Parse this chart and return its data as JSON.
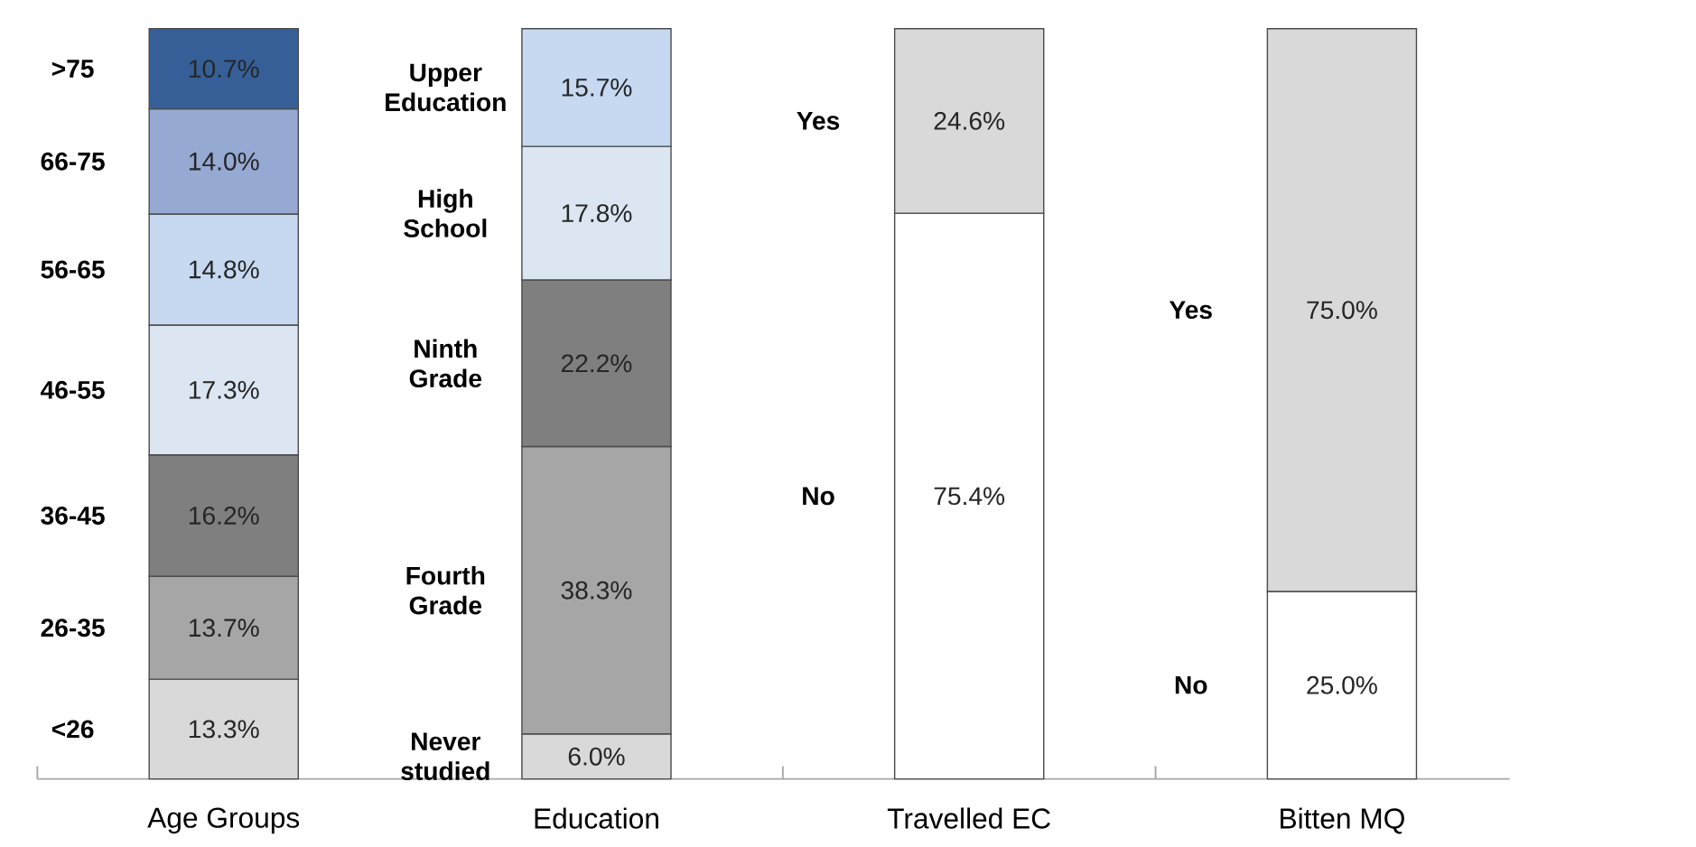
{
  "chart_data": {
    "type": "bar",
    "stacked": true,
    "categories": [
      "Age Groups",
      "Education",
      "Travelled EC",
      "Bitten MQ"
    ],
    "series": [
      {
        "name": "<26",
        "color": "#d9d9d9",
        "values": [
          13.3,
          null,
          null,
          null
        ],
        "value_labels": [
          "13.3%",
          null,
          null,
          null
        ]
      },
      {
        "name": "26-35",
        "color": "#a6a6a6",
        "values": [
          13.7,
          null,
          null,
          null
        ],
        "value_labels": [
          "13.7%",
          null,
          null,
          null
        ]
      },
      {
        "name": "36-45",
        "color": "#7f7f7f",
        "values": [
          16.2,
          null,
          null,
          null
        ],
        "value_labels": [
          "16.2%",
          null,
          null,
          null
        ]
      },
      {
        "name": "46-55",
        "color": "#dce6f2",
        "values": [
          17.3,
          null,
          null,
          null
        ],
        "value_labels": [
          "17.3%",
          null,
          null,
          null
        ]
      },
      {
        "name": "56-65",
        "color": "#c6d9f1",
        "values": [
          14.8,
          null,
          null,
          null
        ],
        "value_labels": [
          "14.8%",
          null,
          null,
          null
        ]
      },
      {
        "name": "66-75",
        "color": "#95a9d3",
        "values": [
          14.0,
          null,
          null,
          null
        ],
        "value_labels": [
          "14.0%",
          null,
          null,
          null
        ]
      },
      {
        "name": ">75",
        "color": "#365f98",
        "values": [
          10.7,
          null,
          null,
          null
        ],
        "value_labels": [
          "10.7%",
          null,
          null,
          null
        ]
      },
      {
        "name": "Never studied",
        "color": "#d9d9d9",
        "values": [
          null,
          6.0,
          null,
          null
        ],
        "value_labels": [
          null,
          "6.0%",
          null,
          null
        ]
      },
      {
        "name": "Fourth Grade",
        "color": "#a6a6a6",
        "values": [
          null,
          38.3,
          null,
          null
        ],
        "value_labels": [
          null,
          "38.3%",
          null,
          null
        ]
      },
      {
        "name": "Ninth Grade",
        "color": "#7f7f7f",
        "values": [
          null,
          22.2,
          null,
          null
        ],
        "value_labels": [
          null,
          "22.2%",
          null,
          null
        ]
      },
      {
        "name": "High School",
        "color": "#dce6f2",
        "values": [
          null,
          17.8,
          null,
          null
        ],
        "value_labels": [
          null,
          "17.8%",
          null,
          null
        ]
      },
      {
        "name": "Upper Education",
        "color": "#c6d9f1",
        "values": [
          null,
          15.7,
          null,
          null
        ],
        "value_labels": [
          null,
          "15.7%",
          null,
          null
        ]
      },
      {
        "name": "No",
        "color": "#ffffff",
        "values": [
          null,
          null,
          75.4,
          null
        ],
        "value_labels": [
          null,
          null,
          "75.4%",
          null
        ]
      },
      {
        "name": "Yes",
        "color": "#d9d9d9",
        "values": [
          null,
          null,
          24.6,
          null
        ],
        "value_labels": [
          null,
          null,
          "24.6%",
          null
        ]
      },
      {
        "name": "No",
        "color": "#ffffff",
        "values": [
          null,
          null,
          null,
          25.0
        ],
        "value_labels": [
          null,
          null,
          null,
          "25.0%"
        ]
      },
      {
        "name": "Yes",
        "color": "#d9d9d9",
        "values": [
          null,
          null,
          null,
          75.0
        ],
        "value_labels": [
          null,
          null,
          null,
          "75.0%"
        ]
      }
    ]
  }
}
